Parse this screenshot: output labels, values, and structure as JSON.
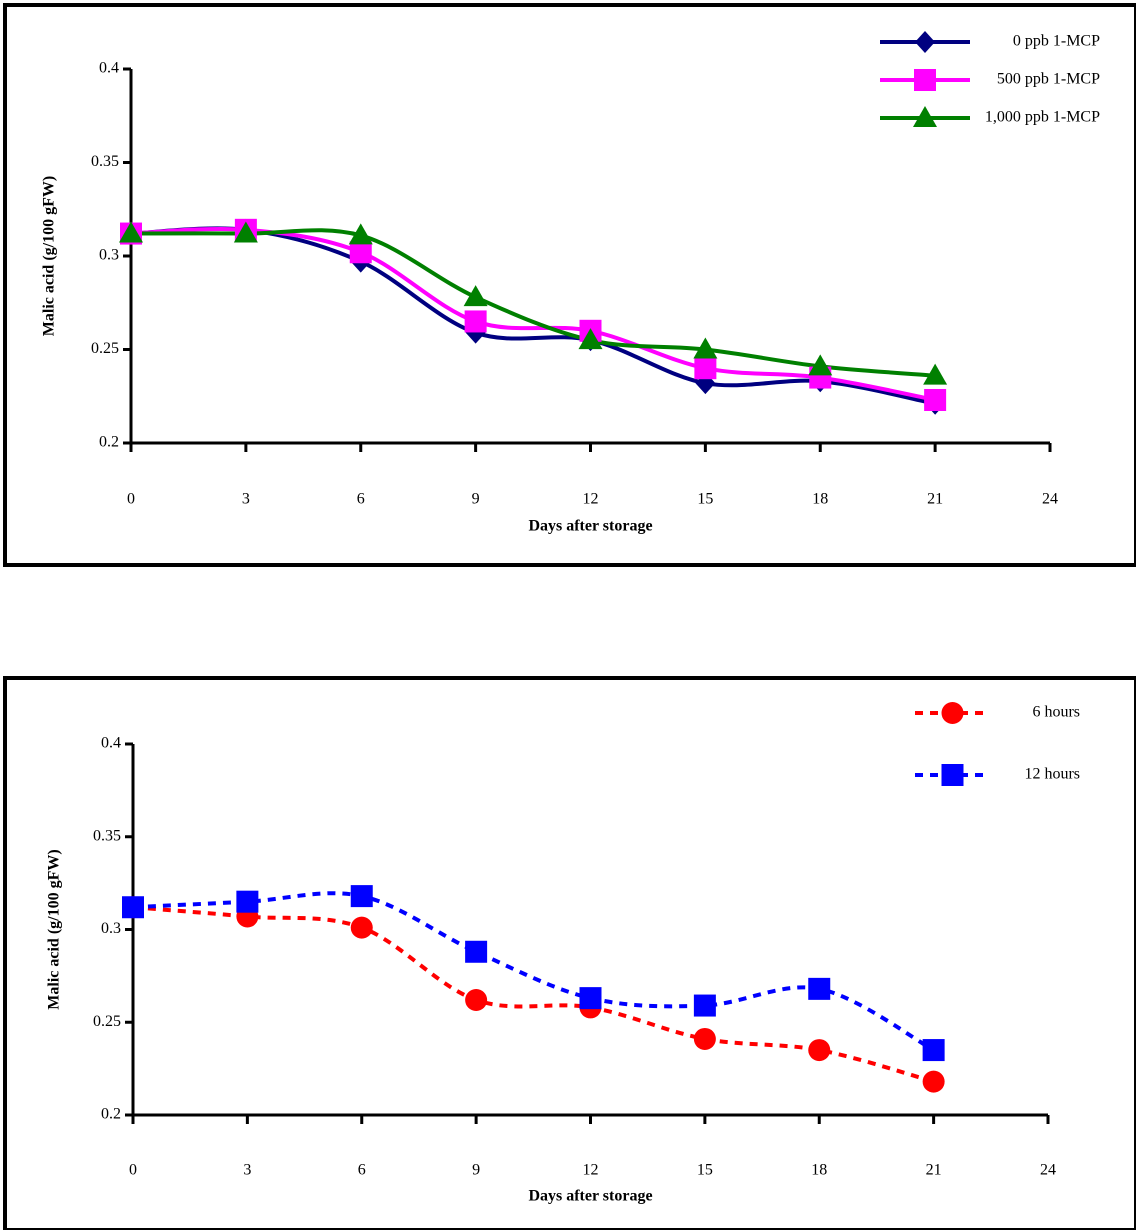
{
  "chart_data": [
    {
      "type": "line",
      "xlabel": "Days after storage",
      "ylabel": "Malic acid (g/100 gFW)",
      "x": [
        0,
        3,
        6,
        9,
        12,
        15,
        18,
        21
      ],
      "series": [
        {
          "name": "0 ppb 1-MCP",
          "color": "#000080",
          "marker": "diamond",
          "values": [
            0.312,
            0.314,
            0.297,
            0.259,
            0.255,
            0.232,
            0.233,
            0.221
          ]
        },
        {
          "name": "500 ppb 1-MCP",
          "color": "#ff00ff",
          "marker": "square",
          "values": [
            0.312,
            0.314,
            0.302,
            0.265,
            0.26,
            0.24,
            0.235,
            0.223
          ]
        },
        {
          "name": "1,000 ppb 1-MCP",
          "color": "#008000",
          "marker": "triangle",
          "values": [
            0.312,
            0.312,
            0.311,
            0.278,
            0.255,
            0.25,
            0.241,
            0.236
          ]
        }
      ],
      "xlim": [
        0,
        24
      ],
      "xticks": [
        0,
        3,
        6,
        9,
        12,
        15,
        18,
        21,
        24
      ],
      "ylim": [
        0.2,
        0.4
      ],
      "yticks": [
        0.2,
        0.25,
        0.3,
        0.35,
        0.4
      ],
      "linestyle": "solid",
      "legend": "upper right"
    },
    {
      "type": "line",
      "xlabel": "Days after storage",
      "ylabel": "Malic acid (g/100 gFW)",
      "x": [
        0,
        3,
        6,
        9,
        12,
        15,
        18,
        21
      ],
      "series": [
        {
          "name": "6 hours",
          "color": "#ff0000",
          "marker": "circle",
          "values": [
            0.312,
            0.307,
            0.301,
            0.262,
            0.258,
            0.241,
            0.235,
            0.218
          ]
        },
        {
          "name": "12 hours",
          "color": "#0000ff",
          "marker": "square",
          "values": [
            0.312,
            0.315,
            0.318,
            0.288,
            0.263,
            0.259,
            0.268,
            0.235
          ]
        }
      ],
      "xlim": [
        0,
        24
      ],
      "xticks": [
        0,
        3,
        6,
        9,
        12,
        15,
        18,
        21,
        24
      ],
      "ylim": [
        0.2,
        0.4
      ],
      "yticks": [
        0.2,
        0.25,
        0.3,
        0.35,
        0.4
      ],
      "linestyle": "dashed",
      "legend": "upper right"
    }
  ]
}
